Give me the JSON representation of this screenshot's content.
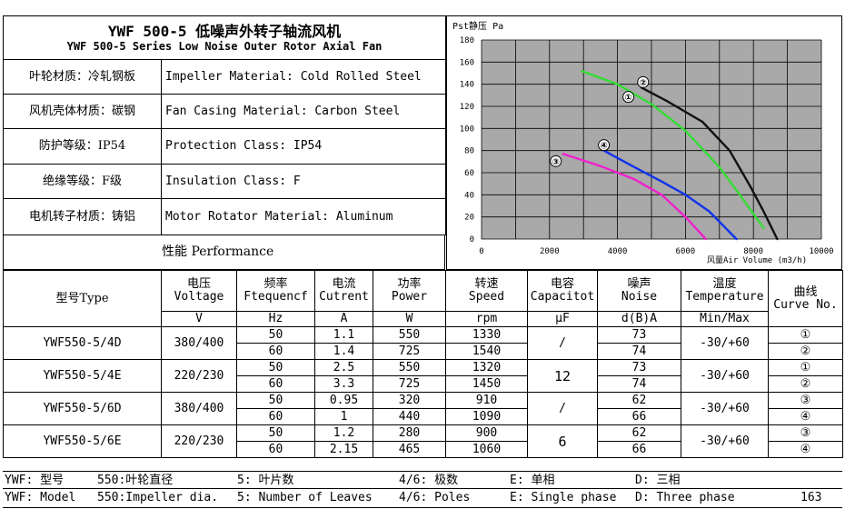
{
  "header": {
    "title": "YWF 500-5 低噪声外转子轴流风机",
    "subtitle": "YWF 500-5 Series Low Noise Outer Rotor Axial Fan"
  },
  "properties": [
    {
      "cn": "叶轮材质：冷轧钢板",
      "en": "Impeller Material: Cold Rolled Steel"
    },
    {
      "cn": "风机壳体材质：碳钢",
      "en": "Fan Casing Material: Carbon Steel"
    },
    {
      "cn": "防护等级：IP54",
      "en": "Protection Class: IP54"
    },
    {
      "cn": "绝缘等级：F级",
      "en": "Insulation Class: F"
    },
    {
      "cn": "电机转子材质：铸铝",
      "en": "Motor Rotator Material: Aluminum"
    }
  ],
  "performance_label": "性能  Performance",
  "table": {
    "model_header": "型号Type",
    "columns": [
      {
        "cn": "电压",
        "en": "Voltage",
        "unit": "V"
      },
      {
        "cn": "频率",
        "en": "Ftequencf",
        "unit": "Hz"
      },
      {
        "cn": "电流",
        "en": "Cutrent",
        "unit": "A"
      },
      {
        "cn": "功率",
        "en": "Power",
        "unit": "W"
      },
      {
        "cn": "转速",
        "en": "Speed",
        "unit": "rpm"
      },
      {
        "cn": "电容",
        "en": "Capacitot",
        "unit": "μF"
      },
      {
        "cn": "噪声",
        "en": "Noise",
        "unit": "d(B)A"
      },
      {
        "cn": "温度",
        "en": "Temperature",
        "unit": "Min/Max"
      }
    ],
    "curve_header": {
      "cn": "曲线",
      "en": "Curve No."
    },
    "models": [
      {
        "type": "YWF550-5/4D",
        "voltage": "380/400",
        "capacitor": "/",
        "temp": "-30/+60",
        "rows": [
          {
            "hz": "50",
            "amp": "1.1",
            "power": "550",
            "speed": "1330",
            "noise": "73",
            "curve": "①"
          },
          {
            "hz": "60",
            "amp": "1.4",
            "power": "725",
            "speed": "1540",
            "noise": "74",
            "curve": "②"
          }
        ]
      },
      {
        "type": "YWF550-5/4E",
        "voltage": "220/230",
        "capacitor": "12",
        "temp": "-30/+60",
        "rows": [
          {
            "hz": "50",
            "amp": "2.5",
            "power": "550",
            "speed": "1320",
            "noise": "73",
            "curve": "①"
          },
          {
            "hz": "60",
            "amp": "3.3",
            "power": "725",
            "speed": "1450",
            "noise": "74",
            "curve": "②"
          }
        ]
      },
      {
        "type": "YWF550-5/6D",
        "voltage": "380/400",
        "capacitor": "/",
        "temp": "-30/+60",
        "rows": [
          {
            "hz": "50",
            "amp": "0.95",
            "power": "320",
            "speed": "910",
            "noise": "62",
            "curve": "③"
          },
          {
            "hz": "60",
            "amp": "1",
            "power": "440",
            "speed": "1090",
            "noise": "66",
            "curve": "④"
          }
        ]
      },
      {
        "type": "YWF550-5/6E",
        "voltage": "220/230",
        "capacitor": "6",
        "temp": "-30/+60",
        "rows": [
          {
            "hz": "50",
            "amp": "1.2",
            "power": "280",
            "speed": "900",
            "noise": "62",
            "curve": "③"
          },
          {
            "hz": "60",
            "amp": "2.15",
            "power": "465",
            "speed": "1060",
            "noise": "66",
            "curve": "④"
          }
        ]
      }
    ]
  },
  "footer": {
    "cn": [
      "YWF: 型号",
      "550:叶轮直径",
      "5: 叶片数",
      "4/6: 极数",
      "E: 单相",
      "D: 三相"
    ],
    "en": [
      "YWF: Model",
      "550:Impeller dia.",
      "5: Number of Leaves",
      "4/6: Poles",
      "E: Single phase",
      "D: Three phase"
    ],
    "page": "163"
  },
  "chart_data": {
    "type": "line",
    "ylabel": "Pst静压 Pa",
    "xlabel": "风量Air Volume (m3/h)",
    "xlim": [
      0,
      10000
    ],
    "ylim": [
      0,
      180
    ],
    "xticks": [
      "0",
      "2000",
      "4000",
      "6000",
      "8000",
      "10000"
    ],
    "yticks": [
      "0",
      "20",
      "40",
      "60",
      "80",
      "100",
      "120",
      "140",
      "160",
      "180"
    ],
    "grid": true,
    "series": [
      {
        "name": "①",
        "color": "#33dd33",
        "points": [
          [
            2950,
            152
          ],
          [
            4000,
            140
          ],
          [
            5000,
            122
          ],
          [
            6000,
            98
          ],
          [
            7000,
            65
          ],
          [
            7600,
            40
          ],
          [
            8300,
            10
          ]
        ]
      },
      {
        "name": "②",
        "color": "#111111",
        "points": [
          [
            4700,
            137
          ],
          [
            5500,
            124
          ],
          [
            6500,
            106
          ],
          [
            7300,
            80
          ],
          [
            7900,
            48
          ],
          [
            8300,
            25
          ],
          [
            8700,
            0
          ]
        ]
      },
      {
        "name": "③",
        "color": "#ee22cc",
        "points": [
          [
            2400,
            77
          ],
          [
            3500,
            66
          ],
          [
            4500,
            54
          ],
          [
            5300,
            40
          ],
          [
            6000,
            20
          ],
          [
            6600,
            0
          ]
        ]
      },
      {
        "name": "④",
        "color": "#1133ee",
        "points": [
          [
            3600,
            80
          ],
          [
            4500,
            65
          ],
          [
            5300,
            52
          ],
          [
            6000,
            40
          ],
          [
            6700,
            25
          ],
          [
            7500,
            0
          ]
        ]
      }
    ]
  }
}
